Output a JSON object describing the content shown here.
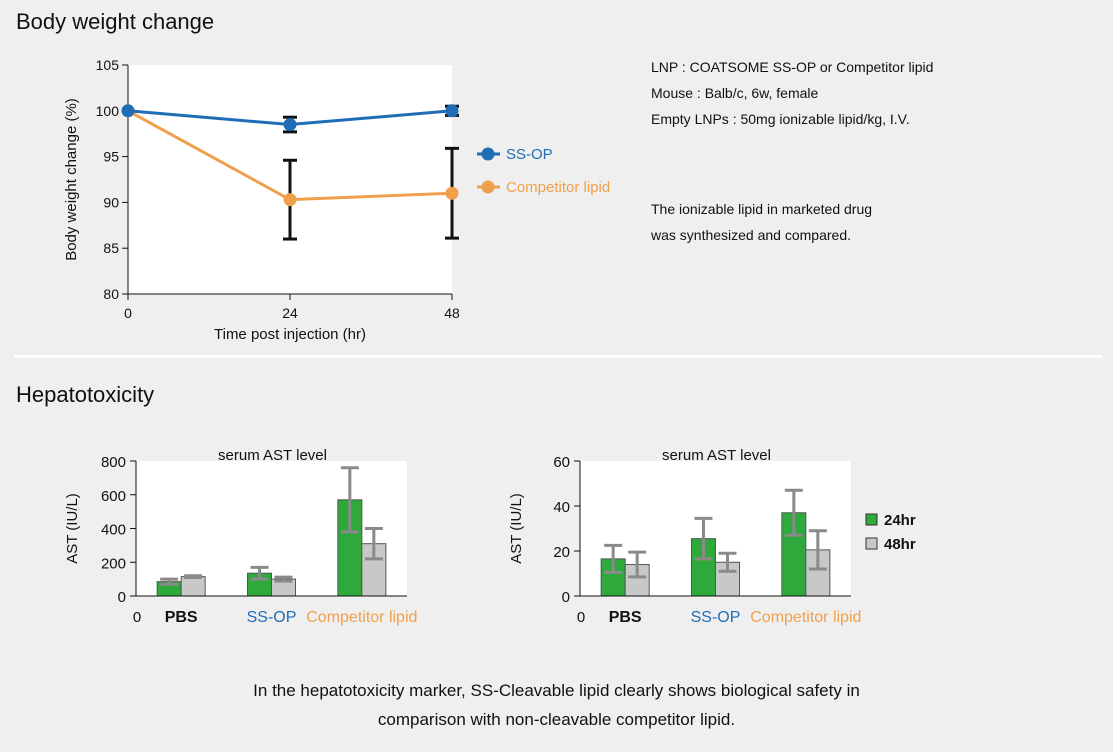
{
  "section1_title": "Body weight change",
  "section2_title": "Hepatotoxicity",
  "info": {
    "line1": "LNP : COATSOME SS-OP or Competitor lipid",
    "line2": "Mouse : Balb/c, 6w, female",
    "line3": "Empty LNPs : 50mg ionizable lipid/kg, I.V.",
    "line4": "The ionizable lipid in marketed drug",
    "line5": "was synthesized and compared."
  },
  "footer": {
    "line1": "In the hepatotoxicity marker, SS-Cleavable lipid clearly shows biological safety in",
    "line2": "comparison with non-cleavable competitor lipid."
  },
  "colors": {
    "ss_op": "#1f6db5",
    "competitor": "#f0a04b",
    "bar_24hr": "#2eaa3c",
    "bar_48hr": "#c8c8c8",
    "error_bar_gray": "#8a8a8a"
  },
  "chart_data": [
    {
      "type": "line",
      "title": "",
      "xlabel": "Time post injection (hr)",
      "ylabel": "Body weight change (%)",
      "x": [
        0,
        24,
        48
      ],
      "xticks": [
        "0",
        "24",
        "48"
      ],
      "ylim": [
        80,
        105
      ],
      "yticks": [
        "80",
        "85",
        "90",
        "95",
        "100",
        "105"
      ],
      "grid": false,
      "legend_position": "right",
      "series": [
        {
          "name": "SS-OP",
          "values": [
            100,
            98.5,
            100
          ],
          "errors": [
            0,
            0.8,
            0.5
          ],
          "color": "#1f6db5"
        },
        {
          "name": "Competitor lipid",
          "values": [
            100,
            90.3,
            91
          ],
          "errors": [
            0,
            4.3,
            4.9
          ],
          "color": "#f0a04b"
        }
      ]
    },
    {
      "type": "bar",
      "title": "serum AST level",
      "ylabel": "AST (IU/L)",
      "ylim": [
        0,
        800
      ],
      "yticks": [
        "0",
        "200",
        "400",
        "600",
        "800"
      ],
      "x_zero_label": "0",
      "categories": [
        "PBS",
        "SS-OP",
        "Competitor lipid"
      ],
      "category_colors": [
        "#111111",
        "#1f6db5",
        "#f0a04b"
      ],
      "series": [
        {
          "name": "24hr",
          "values": [
            85,
            135,
            570
          ],
          "errors": [
            15,
            35,
            190
          ],
          "color": "#2eaa3c"
        },
        {
          "name": "48hr",
          "values": [
            115,
            100,
            310
          ],
          "errors": [
            5,
            12,
            90
          ],
          "color": "#c8c8c8"
        }
      ]
    },
    {
      "type": "bar",
      "title": "serum AST level",
      "ylabel": "AST (IU/L)",
      "ylim": [
        0,
        60
      ],
      "yticks": [
        "0",
        "20",
        "40",
        "60"
      ],
      "x_zero_label": "0",
      "categories": [
        "PBS",
        "SS-OP",
        "Competitor lipid"
      ],
      "category_colors": [
        "#111111",
        "#1f6db5",
        "#f0a04b"
      ],
      "legend_position": "right",
      "series": [
        {
          "name": "24hr",
          "values": [
            16.5,
            25.5,
            37
          ],
          "errors": [
            6,
            9,
            10
          ],
          "color": "#2eaa3c"
        },
        {
          "name": "48hr",
          "values": [
            14,
            15,
            20.5
          ],
          "errors": [
            5.5,
            4,
            8.5
          ],
          "color": "#c8c8c8"
        }
      ]
    }
  ]
}
